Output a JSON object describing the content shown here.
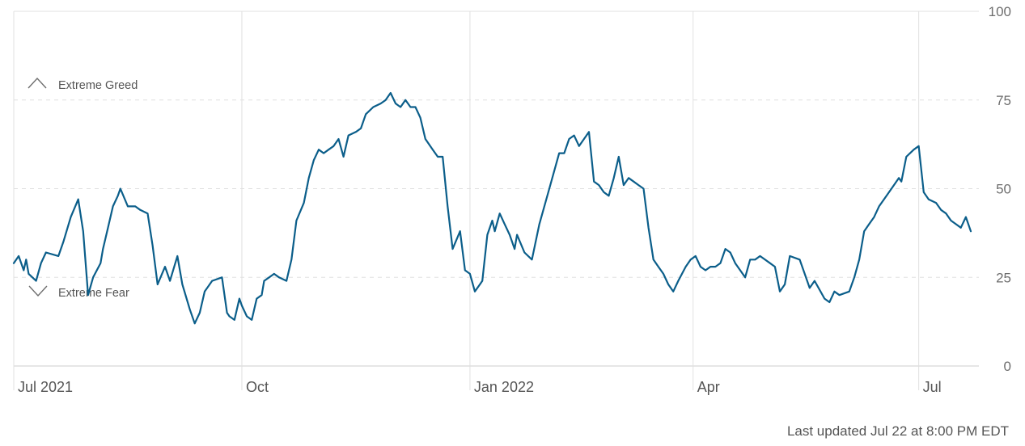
{
  "footer": {
    "last_updated": "Last updated Jul 22 at 8:00 PM EDT"
  },
  "zones": {
    "greed_label": "Extreme Greed",
    "fear_label": "Extreme Fear"
  },
  "colors": {
    "line": "#0b5e8a",
    "grid": "#e0e0e0",
    "axis": "#cccccc"
  },
  "chart_data": {
    "type": "line",
    "xlabel": "",
    "ylabel": "",
    "ylim": [
      0,
      100
    ],
    "yticks": [
      0,
      25,
      50,
      75,
      100
    ],
    "xlim": [
      "2021-07-01",
      "2022-07-22"
    ],
    "xtick_labels": [
      {
        "label": "Jul 2021",
        "date": "2021-07-01"
      },
      {
        "label": "Oct",
        "date": "2021-10-01"
      },
      {
        "label": "Jan 2022",
        "date": "2022-01-01"
      },
      {
        "label": "Apr",
        "date": "2022-04-01"
      },
      {
        "label": "Jul",
        "date": "2022-07-01"
      }
    ],
    "grid": true,
    "series": [
      {
        "points": [
          [
            "2021-07-01",
            29
          ],
          [
            "2021-07-03",
            31
          ],
          [
            "2021-07-05",
            27
          ],
          [
            "2021-07-06",
            30
          ],
          [
            "2021-07-07",
            26
          ],
          [
            "2021-07-10",
            24
          ],
          [
            "2021-07-12",
            29
          ],
          [
            "2021-07-14",
            32
          ],
          [
            "2021-07-19",
            31
          ],
          [
            "2021-07-21",
            35
          ],
          [
            "2021-07-24",
            42
          ],
          [
            "2021-07-27",
            47
          ],
          [
            "2021-07-29",
            38
          ],
          [
            "2021-07-31",
            20
          ],
          [
            "2021-08-02",
            25
          ],
          [
            "2021-08-05",
            29
          ],
          [
            "2021-08-06",
            33
          ],
          [
            "2021-08-08",
            39
          ],
          [
            "2021-08-10",
            45
          ],
          [
            "2021-08-12",
            48
          ],
          [
            "2021-08-13",
            50
          ],
          [
            "2021-08-16",
            45
          ],
          [
            "2021-08-19",
            45
          ],
          [
            "2021-08-21",
            44
          ],
          [
            "2021-08-24",
            43
          ],
          [
            "2021-08-26",
            34
          ],
          [
            "2021-08-28",
            23
          ],
          [
            "2021-08-31",
            28
          ],
          [
            "2021-09-02",
            24
          ],
          [
            "2021-09-05",
            31
          ],
          [
            "2021-09-07",
            23
          ],
          [
            "2021-09-10",
            16
          ],
          [
            "2021-09-12",
            12
          ],
          [
            "2021-09-14",
            15
          ],
          [
            "2021-09-16",
            21
          ],
          [
            "2021-09-19",
            24
          ],
          [
            "2021-09-23",
            25
          ],
          [
            "2021-09-25",
            15
          ],
          [
            "2021-09-26",
            14
          ],
          [
            "2021-09-28",
            13
          ],
          [
            "2021-09-30",
            19
          ],
          [
            "2021-10-01",
            17
          ],
          [
            "2021-10-03",
            14
          ],
          [
            "2021-10-05",
            13
          ],
          [
            "2021-10-07",
            19
          ],
          [
            "2021-10-09",
            20
          ],
          [
            "2021-10-10",
            24
          ],
          [
            "2021-10-12",
            25
          ],
          [
            "2021-10-14",
            26
          ],
          [
            "2021-10-16",
            25
          ],
          [
            "2021-10-19",
            24
          ],
          [
            "2021-10-21",
            30
          ],
          [
            "2021-10-23",
            41
          ],
          [
            "2021-10-26",
            46
          ],
          [
            "2021-10-28",
            53
          ],
          [
            "2021-10-30",
            58
          ],
          [
            "2021-11-01",
            61
          ],
          [
            "2021-11-03",
            60
          ],
          [
            "2021-11-05",
            61
          ],
          [
            "2021-11-07",
            62
          ],
          [
            "2021-11-09",
            64
          ],
          [
            "2021-11-11",
            59
          ],
          [
            "2021-11-13",
            65
          ],
          [
            "2021-11-16",
            66
          ],
          [
            "2021-11-18",
            67
          ],
          [
            "2021-11-20",
            71
          ],
          [
            "2021-11-23",
            73
          ],
          [
            "2021-11-26",
            74
          ],
          [
            "2021-11-28",
            75
          ],
          [
            "2021-11-30",
            77
          ],
          [
            "2021-12-02",
            74
          ],
          [
            "2021-12-04",
            73
          ],
          [
            "2021-12-06",
            75
          ],
          [
            "2021-12-08",
            73
          ],
          [
            "2021-12-10",
            73
          ],
          [
            "2021-12-12",
            70
          ],
          [
            "2021-12-14",
            64
          ],
          [
            "2021-12-17",
            61
          ],
          [
            "2021-12-19",
            59
          ],
          [
            "2021-12-21",
            59
          ],
          [
            "2021-12-23",
            45
          ],
          [
            "2021-12-25",
            33
          ],
          [
            "2021-12-28",
            38
          ],
          [
            "2021-12-30",
            27
          ],
          [
            "2022-01-01",
            26
          ],
          [
            "2022-01-03",
            21
          ],
          [
            "2022-01-05",
            23
          ],
          [
            "2022-01-06",
            24
          ],
          [
            "2022-01-08",
            37
          ],
          [
            "2022-01-10",
            41
          ],
          [
            "2022-01-11",
            38
          ],
          [
            "2022-01-13",
            43
          ],
          [
            "2022-01-15",
            40
          ],
          [
            "2022-01-17",
            37
          ],
          [
            "2022-01-19",
            33
          ],
          [
            "2022-01-20",
            37
          ],
          [
            "2022-01-23",
            32
          ],
          [
            "2022-01-26",
            30
          ],
          [
            "2022-01-29",
            40
          ],
          [
            "2022-02-02",
            50
          ],
          [
            "2022-02-06",
            60
          ],
          [
            "2022-02-08",
            60
          ],
          [
            "2022-02-10",
            64
          ],
          [
            "2022-02-12",
            65
          ],
          [
            "2022-02-14",
            62
          ],
          [
            "2022-02-18",
            66
          ],
          [
            "2022-02-20",
            52
          ],
          [
            "2022-02-22",
            51
          ],
          [
            "2022-02-24",
            49
          ],
          [
            "2022-02-26",
            48
          ],
          [
            "2022-02-28",
            53
          ],
          [
            "2022-03-02",
            59
          ],
          [
            "2022-03-04",
            51
          ],
          [
            "2022-03-06",
            53
          ],
          [
            "2022-03-08",
            52
          ],
          [
            "2022-03-10",
            51
          ],
          [
            "2022-03-12",
            50
          ],
          [
            "2022-03-14",
            39
          ],
          [
            "2022-03-16",
            30
          ],
          [
            "2022-03-18",
            28
          ],
          [
            "2022-03-20",
            26
          ],
          [
            "2022-03-22",
            23
          ],
          [
            "2022-03-24",
            21
          ],
          [
            "2022-03-26",
            24
          ],
          [
            "2022-03-29",
            28
          ],
          [
            "2022-03-31",
            30
          ],
          [
            "2022-04-02",
            31
          ],
          [
            "2022-04-04",
            28
          ],
          [
            "2022-04-06",
            27
          ],
          [
            "2022-04-08",
            28
          ],
          [
            "2022-04-10",
            28
          ],
          [
            "2022-04-12",
            29
          ],
          [
            "2022-04-14",
            33
          ],
          [
            "2022-04-16",
            32
          ],
          [
            "2022-04-18",
            29
          ],
          [
            "2022-04-22",
            25
          ],
          [
            "2022-04-24",
            30
          ],
          [
            "2022-04-26",
            30
          ],
          [
            "2022-04-28",
            31
          ],
          [
            "2022-05-02",
            29
          ],
          [
            "2022-05-04",
            28
          ],
          [
            "2022-05-06",
            21
          ],
          [
            "2022-05-08",
            23
          ],
          [
            "2022-05-10",
            31
          ],
          [
            "2022-05-14",
            30
          ],
          [
            "2022-05-16",
            26
          ],
          [
            "2022-05-18",
            22
          ],
          [
            "2022-05-20",
            24
          ],
          [
            "2022-05-24",
            19
          ],
          [
            "2022-05-26",
            18
          ],
          [
            "2022-05-28",
            21
          ],
          [
            "2022-05-30",
            20
          ],
          [
            "2022-06-03",
            21
          ],
          [
            "2022-06-05",
            25
          ],
          [
            "2022-06-07",
            30
          ],
          [
            "2022-06-09",
            38
          ],
          [
            "2022-06-11",
            40
          ],
          [
            "2022-06-13",
            42
          ],
          [
            "2022-06-15",
            45
          ],
          [
            "2022-06-17",
            47
          ],
          [
            "2022-06-21",
            51
          ],
          [
            "2022-06-23",
            53
          ],
          [
            "2022-06-24",
            52
          ],
          [
            "2022-06-26",
            59
          ],
          [
            "2022-06-29",
            61
          ],
          [
            "2022-07-01",
            62
          ],
          [
            "2022-07-03",
            49
          ],
          [
            "2022-07-05",
            47
          ],
          [
            "2022-07-08",
            46
          ],
          [
            "2022-07-10",
            44
          ],
          [
            "2022-07-12",
            43
          ],
          [
            "2022-07-14",
            41
          ],
          [
            "2022-07-16",
            40
          ],
          [
            "2022-07-18",
            39
          ],
          [
            "2022-07-20",
            42
          ],
          [
            "2022-07-22",
            38
          ]
        ]
      }
    ]
  }
}
